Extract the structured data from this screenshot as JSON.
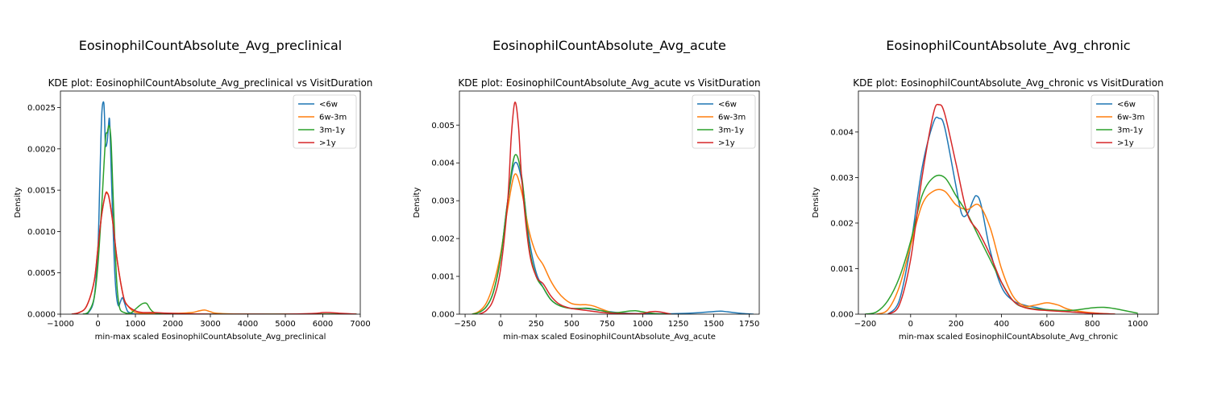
{
  "colors": {
    "<6w": "#1f77b4",
    "6w-3m": "#ff7f0e",
    "3m-1y": "#2ca02c",
    ">1y": "#d62728"
  },
  "chart_data": [
    {
      "type": "line",
      "suptitle": "EosinophilCountAbsolute_Avg_preclinical",
      "title": "KDE plot:  EosinophilCountAbsolute_Avg_preclinical vs VisitDuration",
      "xlabel": "min-max scaled EosinophilCountAbsolute_Avg_preclinical",
      "ylabel": "Density",
      "xlim": [
        -1000,
        7000
      ],
      "ylim": [
        0,
        0.0027
      ],
      "xticks": [
        -1000,
        0,
        1000,
        2000,
        3000,
        4000,
        5000,
        6000,
        7000
      ],
      "yticks": [
        "0.0000",
        "0.0005",
        "0.0010",
        "0.0015",
        "0.0020",
        "0.0025"
      ],
      "legend_loc": "upper right",
      "series": [
        {
          "name": "<6w",
          "x": [
            -400,
            -250,
            -100,
            0,
            50,
            100,
            150,
            175,
            200,
            250,
            300,
            325,
            350,
            400,
            450,
            500,
            550,
            600,
            650,
            700,
            750,
            800,
            900,
            1000,
            1200,
            1500,
            2000,
            3000,
            4000,
            5000,
            6000,
            6900
          ],
          "y": [
            0,
            2e-05,
            0.0002,
            0.0008,
            0.0016,
            0.0024,
            0.00257,
            0.0024,
            0.00205,
            0.0021,
            0.00237,
            0.0022,
            0.0018,
            0.0011,
            0.0005,
            0.0002,
            0.0001,
            0.00015,
            0.0002,
            0.00015,
            8e-05,
            3e-05,
            1e-05,
            0,
            0,
            0,
            0,
            0,
            0,
            0,
            0,
            0
          ]
        },
        {
          "name": "6w-3m",
          "x": [
            -700,
            -500,
            -300,
            -100,
            0,
            100,
            200,
            250,
            300,
            400,
            500,
            600,
            700,
            800,
            900,
            1000,
            1200,
            1500,
            2000,
            2500,
            2700,
            2850,
            3000,
            3200,
            4000,
            5000,
            6000,
            6900
          ],
          "y": [
            0,
            2e-05,
            0.0001,
            0.0004,
            0.0008,
            0.0012,
            0.00145,
            0.00147,
            0.0014,
            0.0011,
            0.0007,
            0.0004,
            0.00018,
            0.0001,
            5e-05,
            2e-05,
            1e-05,
            1e-05,
            1e-05,
            2e-05,
            4e-05,
            5e-05,
            3e-05,
            1e-05,
            0,
            0,
            0,
            0
          ]
        },
        {
          "name": "3m-1y",
          "x": [
            -400,
            -250,
            -100,
            0,
            100,
            200,
            250,
            300,
            350,
            400,
            450,
            500,
            550,
            600,
            700,
            800,
            900,
            1000,
            1100,
            1200,
            1300,
            1400,
            1500,
            1700,
            2000,
            3000,
            4000,
            5000,
            6000,
            6900
          ],
          "y": [
            0,
            3e-05,
            0.0002,
            0.0006,
            0.0013,
            0.0021,
            0.0022,
            0.00228,
            0.0021,
            0.0015,
            0.0009,
            0.0004,
            0.00015,
            5e-05,
            2e-05,
            1e-05,
            2e-05,
            6e-05,
            0.0001,
            0.00013,
            0.00013,
            6e-05,
            2e-05,
            0,
            0,
            0,
            0,
            0,
            0,
            0
          ]
        },
        {
          "name": ">1y",
          "x": [
            -700,
            -500,
            -300,
            -100,
            0,
            100,
            200,
            250,
            300,
            400,
            500,
            600,
            700,
            800,
            1000,
            1200,
            1500,
            2000,
            3000,
            4000,
            5000,
            5800,
            6000,
            6200,
            6500,
            6900
          ],
          "y": [
            0,
            2e-05,
            0.0001,
            0.0004,
            0.0008,
            0.0012,
            0.00145,
            0.00146,
            0.0014,
            0.0011,
            0.0007,
            0.0004,
            0.00018,
            0.0001,
            4e-05,
            2e-05,
            2e-05,
            1e-05,
            0,
            0,
            0,
            1e-05,
            2e-05,
            2e-05,
            1e-05,
            0
          ]
        }
      ]
    },
    {
      "type": "line",
      "suptitle": "EosinophilCountAbsolute_Avg_acute",
      "title": "KDE plot:  EosinophilCountAbsolute_Avg_acute vs VisitDuration",
      "xlabel": "min-max scaled EosinophilCountAbsolute_Avg_acute",
      "ylabel": "Density",
      "xlim": [
        -290,
        1820
      ],
      "ylim": [
        0,
        0.0059
      ],
      "xticks": [
        -250,
        0,
        250,
        500,
        750,
        1000,
        1250,
        1500,
        1750
      ],
      "yticks": [
        "0.000",
        "0.001",
        "0.002",
        "0.003",
        "0.004",
        "0.005"
      ],
      "legend_loc": "upper right",
      "series": [
        {
          "name": "<6w",
          "x": [
            -200,
            -150,
            -100,
            -50,
            0,
            50,
            100,
            150,
            200,
            250,
            300,
            350,
            400,
            450,
            500,
            600,
            700,
            800,
            900,
            1000,
            1100,
            1200,
            1300,
            1400,
            1500,
            1550,
            1600,
            1700,
            1780
          ],
          "y": [
            0,
            5e-05,
            0.0002,
            0.0006,
            0.0015,
            0.003,
            0.004,
            0.0035,
            0.002,
            0.0011,
            0.0007,
            0.0004,
            0.00025,
            0.0002,
            0.00015,
            0.00015,
            0.0001,
            5e-05,
            2e-05,
            1e-05,
            1e-05,
            1e-05,
            2e-05,
            4e-05,
            7e-05,
            8e-05,
            6e-05,
            2e-05,
            0
          ]
        },
        {
          "name": "6w-3m",
          "x": [
            -200,
            -150,
            -100,
            -50,
            0,
            50,
            100,
            150,
            200,
            250,
            300,
            350,
            400,
            450,
            500,
            550,
            600,
            650,
            700,
            750,
            800,
            900,
            1000
          ],
          "y": [
            0,
            8e-05,
            0.0003,
            0.0008,
            0.0016,
            0.0028,
            0.0037,
            0.0032,
            0.0022,
            0.0016,
            0.0013,
            0.0009,
            0.0006,
            0.0004,
            0.00028,
            0.00025,
            0.00025,
            0.00022,
            0.00015,
            8e-05,
            3e-05,
            1e-05,
            0
          ]
        },
        {
          "name": "3m-1y",
          "x": [
            -200,
            -150,
            -100,
            -50,
            0,
            50,
            100,
            150,
            200,
            250,
            300,
            350,
            400,
            450,
            500,
            550,
            600,
            650,
            700,
            800,
            900,
            950,
            1000,
            1100,
            1200
          ],
          "y": [
            0,
            5e-05,
            0.0002,
            0.0006,
            0.0015,
            0.003,
            0.0042,
            0.0036,
            0.0018,
            0.001,
            0.0007,
            0.0004,
            0.00025,
            0.00018,
            0.00015,
            0.00015,
            0.00016,
            0.00014,
            0.0001,
            4e-05,
            8e-05,
            9e-05,
            6e-05,
            1e-05,
            0
          ]
        },
        {
          "name": ">1y",
          "x": [
            -150,
            -100,
            -50,
            0,
            50,
            75,
            100,
            125,
            150,
            200,
            250,
            300,
            350,
            400,
            450,
            500,
            600,
            700,
            800,
            900,
            1000,
            1050,
            1100,
            1150,
            1200
          ],
          "y": [
            0,
            0.0001,
            0.0004,
            0.0012,
            0.003,
            0.0047,
            0.0056,
            0.005,
            0.0035,
            0.0017,
            0.001,
            0.0008,
            0.0005,
            0.0003,
            0.0002,
            0.00015,
            0.0001,
            5e-05,
            2e-05,
            1e-05,
            2e-05,
            6e-05,
            7e-05,
            4e-05,
            0
          ]
        }
      ]
    },
    {
      "type": "line",
      "suptitle": "EosinophilCountAbsolute_Avg_chronic",
      "title": "KDE plot:  EosinophilCountAbsolute_Avg_chronic vs VisitDuration",
      "xlabel": "min-max scaled EosinophilCountAbsolute_Avg_chronic",
      "ylabel": "Density",
      "xlim": [
        -230,
        1090
      ],
      "ylim": [
        0,
        0.0049
      ],
      "xticks": [
        -200,
        0,
        200,
        400,
        600,
        800,
        1000
      ],
      "yticks": [
        "0.000",
        "0.001",
        "0.002",
        "0.003",
        "0.004"
      ],
      "legend_loc": "upper right",
      "series": [
        {
          "name": "<6w",
          "x": [
            -100,
            -50,
            0,
            50,
            100,
            125,
            150,
            200,
            225,
            250,
            275,
            290,
            310,
            350,
            400,
            450,
            500,
            550,
            600,
            700,
            800,
            900
          ],
          "y": [
            0,
            0.0003,
            0.0015,
            0.0032,
            0.0042,
            0.0043,
            0.0041,
            0.0028,
            0.0022,
            0.0022,
            0.0025,
            0.0026,
            0.0024,
            0.0014,
            0.0006,
            0.0003,
            0.0002,
            0.00015,
            0.0001,
            5e-05,
            2e-05,
            0
          ]
        },
        {
          "name": "6w-3m",
          "x": [
            -150,
            -100,
            -50,
            0,
            50,
            100,
            150,
            200,
            250,
            300,
            350,
            400,
            450,
            500,
            550,
            600,
            650,
            700,
            800,
            900
          ],
          "y": [
            0,
            0.0001,
            0.0006,
            0.0015,
            0.0024,
            0.0027,
            0.0027,
            0.0024,
            0.0023,
            0.0024,
            0.0019,
            0.001,
            0.0004,
            0.00018,
            0.0002,
            0.00025,
            0.0002,
            0.0001,
            3e-05,
            0
          ]
        },
        {
          "name": "3m-1y",
          "x": [
            -200,
            -150,
            -100,
            -50,
            0,
            50,
            100,
            150,
            200,
            250,
            300,
            350,
            400,
            450,
            500,
            600,
            700,
            800,
            850,
            900,
            1000
          ],
          "y": [
            0,
            5e-05,
            0.0003,
            0.0008,
            0.0016,
            0.0026,
            0.003,
            0.003,
            0.0026,
            0.0022,
            0.0017,
            0.0012,
            0.0007,
            0.0003,
            0.00015,
            0.0001,
            8e-05,
            0.00014,
            0.00015,
            0.00012,
            2e-05
          ]
        },
        {
          "name": ">1y",
          "x": [
            -100,
            -50,
            0,
            50,
            100,
            125,
            150,
            200,
            250,
            300,
            350,
            400,
            450,
            500,
            550,
            600,
            700,
            800,
            900
          ],
          "y": [
            0,
            0.0002,
            0.0012,
            0.003,
            0.0044,
            0.0046,
            0.0044,
            0.0033,
            0.0022,
            0.0018,
            0.0013,
            0.0007,
            0.0003,
            0.00015,
            0.0001,
            8e-05,
            5e-05,
            2e-05,
            0
          ]
        }
      ]
    }
  ]
}
